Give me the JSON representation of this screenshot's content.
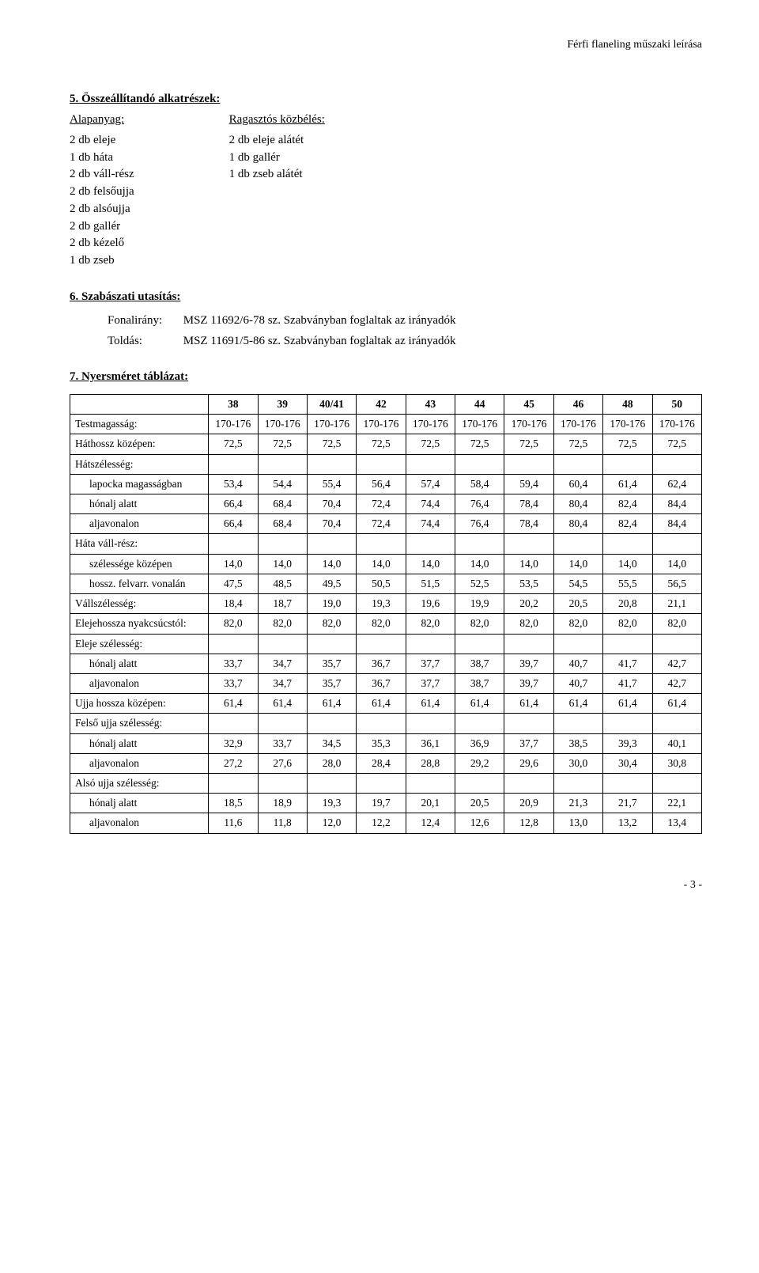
{
  "header": {
    "docTitle": "Férfi flaneling műszaki leírása"
  },
  "section5": {
    "title": "5. Összeállítandó alkatrészek:",
    "leftHead": "Alapanyag:",
    "leftItems": [
      "2 db eleje",
      "1 db háta",
      "2 db váll-rész",
      "2 db felsőujja",
      "2 db alsóujja",
      "2 db gallér",
      "2 db kézelő",
      "1 db zseb"
    ],
    "rightHead": "Ragasztós közbélés:",
    "rightItems": [
      "2 db eleje alátét",
      "1 db gallér",
      "1 db zseb alátét"
    ]
  },
  "section6": {
    "title": "6. Szabászati utasítás:",
    "rows": [
      {
        "label": "Fonalirány:",
        "text": "MSZ 11692/6-78 sz. Szabványban foglaltak az irányadók"
      },
      {
        "label": "Toldás:",
        "text": "MSZ 11691/5-86 sz. Szabványban foglaltak az irányadók"
      }
    ]
  },
  "section7": {
    "title": "7. Nyersméret táblázat:",
    "sizeHeaders": [
      "38",
      "39",
      "40/41",
      "42",
      "43",
      "44",
      "45",
      "46",
      "48",
      "50"
    ],
    "heightLabel": "Testmagasság:",
    "heightCell": "170-176",
    "rows": [
      {
        "label": "Háthossz középen:",
        "indent": false,
        "vals": [
          "72,5",
          "72,5",
          "72,5",
          "72,5",
          "72,5",
          "72,5",
          "72,5",
          "72,5",
          "72,5",
          "72,5"
        ]
      },
      {
        "label": "Hátszélesség:",
        "header": true
      },
      {
        "label": "lapocka magasságban",
        "indent": true,
        "vals": [
          "53,4",
          "54,4",
          "55,4",
          "56,4",
          "57,4",
          "58,4",
          "59,4",
          "60,4",
          "61,4",
          "62,4"
        ]
      },
      {
        "label": "hónalj alatt",
        "indent": true,
        "vals": [
          "66,4",
          "68,4",
          "70,4",
          "72,4",
          "74,4",
          "76,4",
          "78,4",
          "80,4",
          "82,4",
          "84,4"
        ]
      },
      {
        "label": "aljavonalon",
        "indent": true,
        "vals": [
          "66,4",
          "68,4",
          "70,4",
          "72,4",
          "74,4",
          "76,4",
          "78,4",
          "80,4",
          "82,4",
          "84,4"
        ]
      },
      {
        "label": "Háta váll-rész:",
        "header": true
      },
      {
        "label": "szélessége középen",
        "indent": true,
        "vals": [
          "14,0",
          "14,0",
          "14,0",
          "14,0",
          "14,0",
          "14,0",
          "14,0",
          "14,0",
          "14,0",
          "14,0"
        ]
      },
      {
        "label": "hossz. felvarr. vonalán",
        "indent": true,
        "vals": [
          "47,5",
          "48,5",
          "49,5",
          "50,5",
          "51,5",
          "52,5",
          "53,5",
          "54,5",
          "55,5",
          "56,5"
        ]
      },
      {
        "label": "Vállszélesség:",
        "indent": false,
        "vals": [
          "18,4",
          "18,7",
          "19,0",
          "19,3",
          "19,6",
          "19,9",
          "20,2",
          "20,5",
          "20,8",
          "21,1"
        ]
      },
      {
        "label": "Elejehossza nyakcsúcstól:",
        "indent": false,
        "vals": [
          "82,0",
          "82,0",
          "82,0",
          "82,0",
          "82,0",
          "82,0",
          "82,0",
          "82,0",
          "82,0",
          "82,0"
        ]
      },
      {
        "label": "Eleje szélesség:",
        "header": true
      },
      {
        "label": "hónalj alatt",
        "indent": true,
        "vals": [
          "33,7",
          "34,7",
          "35,7",
          "36,7",
          "37,7",
          "38,7",
          "39,7",
          "40,7",
          "41,7",
          "42,7"
        ]
      },
      {
        "label": "aljavonalon",
        "indent": true,
        "vals": [
          "33,7",
          "34,7",
          "35,7",
          "36,7",
          "37,7",
          "38,7",
          "39,7",
          "40,7",
          "41,7",
          "42,7"
        ]
      },
      {
        "label": "Ujja hossza középen:",
        "indent": false,
        "vals": [
          "61,4",
          "61,4",
          "61,4",
          "61,4",
          "61,4",
          "61,4",
          "61,4",
          "61,4",
          "61,4",
          "61,4"
        ]
      },
      {
        "label": "Felső ujja szélesség:",
        "header": true
      },
      {
        "label": "hónalj alatt",
        "indent": true,
        "vals": [
          "32,9",
          "33,7",
          "34,5",
          "35,3",
          "36,1",
          "36,9",
          "37,7",
          "38,5",
          "39,3",
          "40,1"
        ]
      },
      {
        "label": "aljavonalon",
        "indent": true,
        "vals": [
          "27,2",
          "27,6",
          "28,0",
          "28,4",
          "28,8",
          "29,2",
          "29,6",
          "30,0",
          "30,4",
          "30,8"
        ]
      },
      {
        "label": "Alsó ujja szélesség:",
        "header": true
      },
      {
        "label": "hónalj alatt",
        "indent": true,
        "vals": [
          "18,5",
          "18,9",
          "19,3",
          "19,7",
          "20,1",
          "20,5",
          "20,9",
          "21,3",
          "21,7",
          "22,1"
        ]
      },
      {
        "label": "aljavonalon",
        "indent": true,
        "vals": [
          "11,6",
          "11,8",
          "12,0",
          "12,2",
          "12,4",
          "12,6",
          "12,8",
          "13,0",
          "13,2",
          "13,4"
        ]
      }
    ]
  },
  "footer": {
    "pageNum": "- 3 -"
  }
}
